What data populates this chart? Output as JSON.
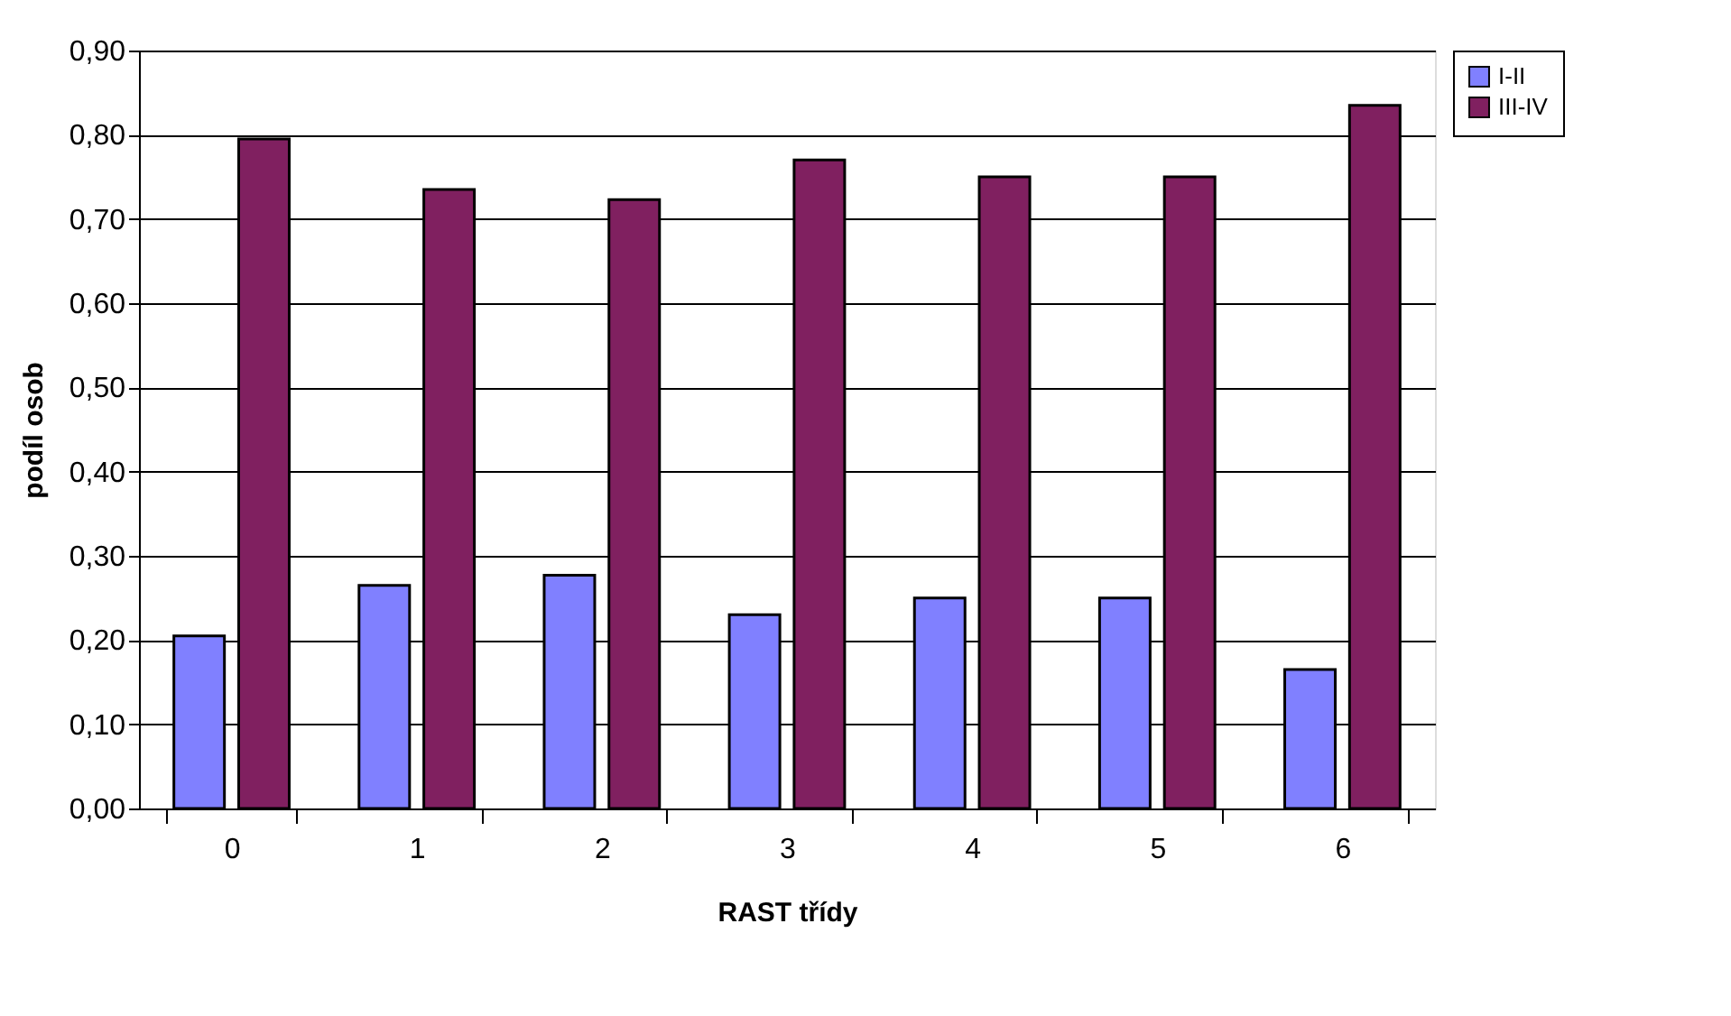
{
  "chart_data": {
    "type": "bar",
    "xlabel": "RAST třídy",
    "ylabel": "podíl osob",
    "categories": [
      "0",
      "1",
      "2",
      "3",
      "4",
      "5",
      "6"
    ],
    "series": [
      {
        "name": "I-II",
        "color": "#8080ff",
        "values": [
          0.205,
          0.265,
          0.277,
          0.23,
          0.25,
          0.25,
          0.165
        ]
      },
      {
        "name": "III-IV",
        "color": "#802060",
        "values": [
          0.795,
          0.735,
          0.723,
          0.77,
          0.75,
          0.75,
          0.835
        ]
      }
    ],
    "ylim": [
      0,
      0.9
    ],
    "yticks": [
      {
        "value": 0,
        "label": "0,00"
      },
      {
        "value": 0.1,
        "label": "0,10"
      },
      {
        "value": 0.2,
        "label": "0,20"
      },
      {
        "value": 0.3,
        "label": "0,30"
      },
      {
        "value": 0.4,
        "label": "0,40"
      },
      {
        "value": 0.5,
        "label": "0,50"
      },
      {
        "value": 0.6,
        "label": "0,60"
      },
      {
        "value": 0.7,
        "label": "0,70"
      },
      {
        "value": 0.8,
        "label": "0,80"
      },
      {
        "value": 0.9,
        "label": "0,90"
      }
    ],
    "grid": "y",
    "legend": "right"
  }
}
